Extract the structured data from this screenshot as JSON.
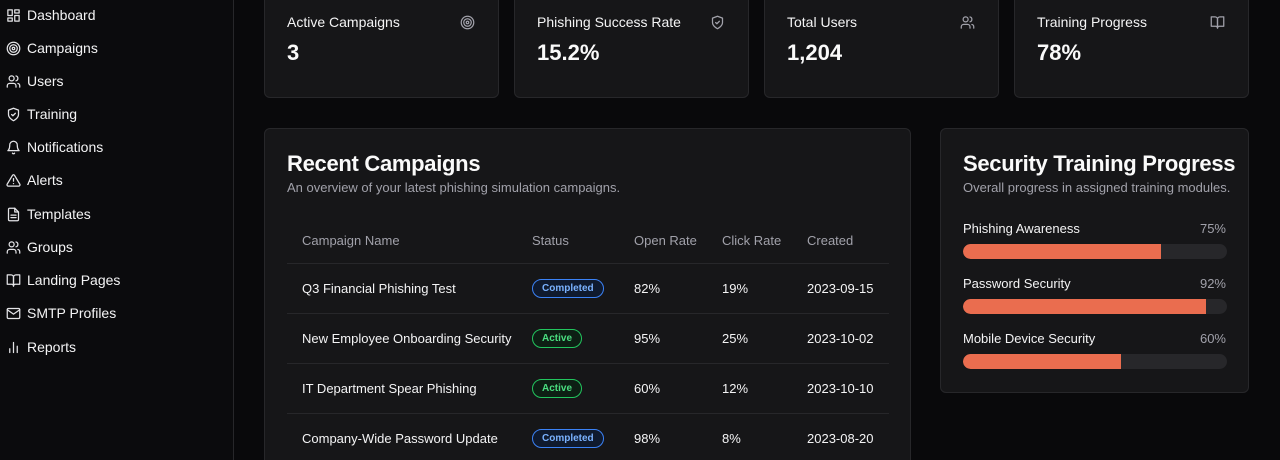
{
  "sidebar": {
    "items": [
      {
        "label": "Dashboard",
        "icon": "dashboard-icon"
      },
      {
        "label": "Campaigns",
        "icon": "target-icon"
      },
      {
        "label": "Users",
        "icon": "users-icon"
      },
      {
        "label": "Training",
        "icon": "shield-icon"
      },
      {
        "label": "Notifications",
        "icon": "bell-icon"
      },
      {
        "label": "Alerts",
        "icon": "alert-triangle-icon"
      },
      {
        "label": "Templates",
        "icon": "file-text-icon"
      },
      {
        "label": "Groups",
        "icon": "users-icon"
      },
      {
        "label": "Landing Pages",
        "icon": "book-icon"
      },
      {
        "label": "SMTP Profiles",
        "icon": "mail-icon"
      },
      {
        "label": "Reports",
        "icon": "bar-chart-icon"
      }
    ]
  },
  "stats": [
    {
      "title": "Active Campaigns",
      "value": "3",
      "icon": "target-icon"
    },
    {
      "title": "Phishing Success Rate",
      "value": "15.2%",
      "icon": "shield-icon"
    },
    {
      "title": "Total Users",
      "value": "1,204",
      "icon": "users-icon"
    },
    {
      "title": "Training Progress",
      "value": "78%",
      "icon": "book-icon"
    }
  ],
  "campaigns": {
    "title": "Recent Campaigns",
    "subtitle": "An overview of your latest phishing simulation campaigns.",
    "columns": [
      "Campaign Name",
      "Status",
      "Open Rate",
      "Click Rate",
      "Created"
    ],
    "rows": [
      {
        "name": "Q3 Financial Phishing Test",
        "status": "Completed",
        "open": "82%",
        "click": "19%",
        "created": "2023-09-15"
      },
      {
        "name": "New Employee Onboarding Security",
        "status": "Active",
        "open": "95%",
        "click": "25%",
        "created": "2023-10-02"
      },
      {
        "name": "IT Department Spear Phishing",
        "status": "Active",
        "open": "60%",
        "click": "12%",
        "created": "2023-10-10"
      },
      {
        "name": "Company-Wide Password Update",
        "status": "Completed",
        "open": "98%",
        "click": "8%",
        "created": "2023-08-20"
      }
    ]
  },
  "training": {
    "title": "Security Training Progress",
    "subtitle": "Overall progress in assigned training modules.",
    "modules": [
      {
        "label": "Phishing Awareness",
        "pct_label": "75%",
        "value": 75
      },
      {
        "label": "Password Security",
        "pct_label": "92%",
        "value": 92
      },
      {
        "label": "Mobile Device Security",
        "pct_label": "60%",
        "value": 60
      }
    ]
  },
  "colors": {
    "accent": "#ea6d4f",
    "completed": "#3b82f6",
    "active": "#22c55e"
  }
}
